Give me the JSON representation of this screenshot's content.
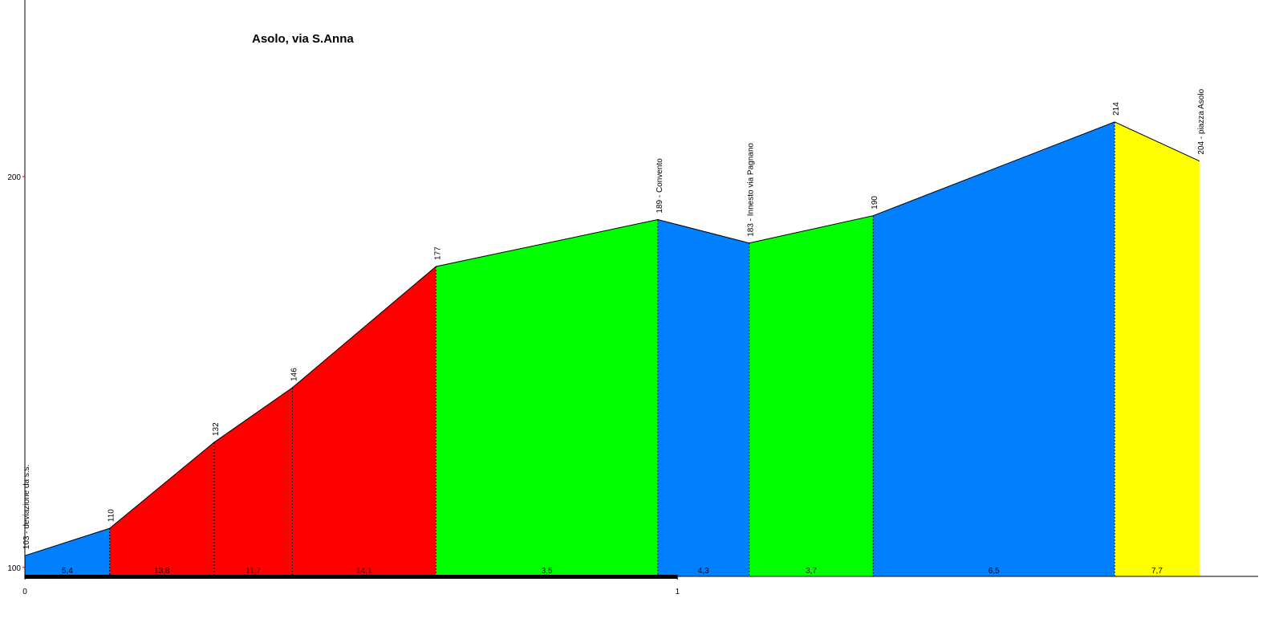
{
  "chart_data": {
    "type": "profile",
    "title": "Asolo, via S.Anna",
    "x": [
      0,
      0.13,
      0.29,
      0.41,
      0.63,
      0.97,
      1.11,
      1.3,
      1.67,
      1.8
    ],
    "values": [
      103,
      110,
      132,
      146,
      177,
      189,
      183,
      190,
      214,
      204
    ],
    "value_labels": [
      "103 - deviazione da s.s.",
      "110",
      "132",
      "146",
      "177",
      "189 - Convento",
      "183 - Innesto via Pagnano",
      "190",
      "214",
      "204 - piazza Asolo"
    ],
    "segments": {
      "values": [
        5.4,
        13.8,
        11.7,
        14.1,
        3.5,
        4.3,
        3.7,
        6.5,
        7.7
      ],
      "value_labels": [
        "5,4",
        "13,8",
        "11,7",
        "14,1",
        "3,5",
        "4,3",
        "3,7",
        "6,5",
        "7,7"
      ],
      "colors": [
        "#0080ff",
        "#ff0000",
        "#ff0000",
        "#ff0000",
        "#00ff00",
        "#0080ff",
        "#00ff00",
        "#0080ff",
        "#ffff00"
      ]
    },
    "xlim": [
      0,
      1.89
    ],
    "ylim": [
      97.7,
      245.2
    ],
    "xticks": [
      0,
      1
    ],
    "yticks": [
      100,
      200
    ]
  }
}
